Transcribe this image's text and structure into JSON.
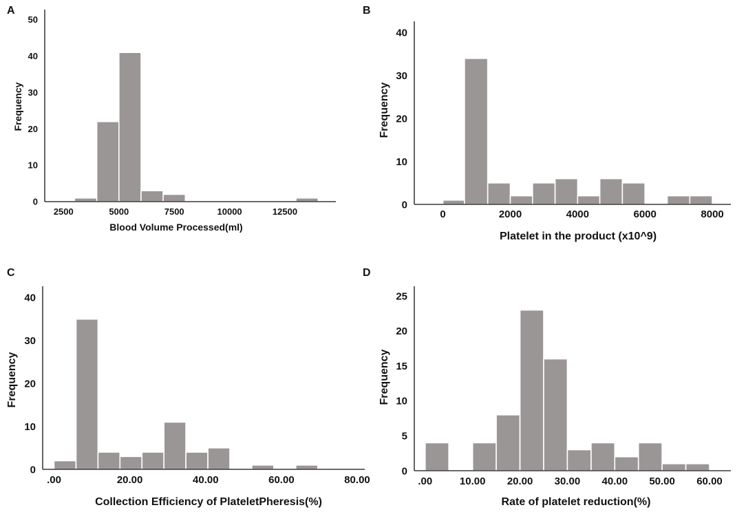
{
  "figure": {
    "bar_color": "#9b9696",
    "axis_color": "#111111"
  },
  "chart_data": [
    {
      "panel": "A",
      "type": "bar",
      "xlabel": "Blood Volume Processed(ml)",
      "ylabel": "Frequency",
      "xlim": [
        1650,
        14800
      ],
      "ylim": [
        0,
        52
      ],
      "xticks": [
        {
          "v": 2500,
          "label": "2500"
        },
        {
          "v": 5000,
          "label": "5000"
        },
        {
          "v": 7500,
          "label": "7500"
        },
        {
          "v": 10000,
          "label": "10000"
        },
        {
          "v": 12500,
          "label": "12500"
        }
      ],
      "yticks": [
        {
          "v": 0,
          "label": "0"
        },
        {
          "v": 10,
          "label": "10"
        },
        {
          "v": 20,
          "label": "20"
        },
        {
          "v": 30,
          "label": "30"
        },
        {
          "v": 40,
          "label": "40"
        },
        {
          "v": 50,
          "label": "50"
        }
      ],
      "bins": [
        {
          "x0": 3000,
          "x1": 4000,
          "count": 1
        },
        {
          "x0": 4000,
          "x1": 5000,
          "count": 22
        },
        {
          "x0": 5000,
          "x1": 6000,
          "count": 41
        },
        {
          "x0": 6000,
          "x1": 7000,
          "count": 3
        },
        {
          "x0": 7000,
          "x1": 8000,
          "count": 2
        },
        {
          "x0": 13000,
          "x1": 14000,
          "count": 1
        }
      ]
    },
    {
      "panel": "B",
      "type": "bar",
      "xlabel": "Platelet in the product (x10^9)",
      "ylabel": "Frequency",
      "xlim": [
        -850,
        8550
      ],
      "ylim": [
        0,
        42
      ],
      "xticks": [
        {
          "v": 0,
          "label": "0"
        },
        {
          "v": 2000,
          "label": "2000"
        },
        {
          "v": 4000,
          "label": "4000"
        },
        {
          "v": 6000,
          "label": "6000"
        },
        {
          "v": 8000,
          "label": "8000"
        }
      ],
      "yticks": [
        {
          "v": 0,
          "label": "0"
        },
        {
          "v": 10,
          "label": "10"
        },
        {
          "v": 20,
          "label": "20"
        },
        {
          "v": 30,
          "label": "30"
        },
        {
          "v": 40,
          "label": "40"
        }
      ],
      "bins": [
        {
          "x0": 0,
          "x1": 640,
          "count": 1
        },
        {
          "x0": 640,
          "x1": 1330,
          "count": 34
        },
        {
          "x0": 1330,
          "x1": 2000,
          "count": 5
        },
        {
          "x0": 2000,
          "x1": 2660,
          "count": 2
        },
        {
          "x0": 2660,
          "x1": 3330,
          "count": 5
        },
        {
          "x0": 3330,
          "x1": 4000,
          "count": 6
        },
        {
          "x0": 4000,
          "x1": 4660,
          "count": 2
        },
        {
          "x0": 4660,
          "x1": 5330,
          "count": 6
        },
        {
          "x0": 5330,
          "x1": 6000,
          "count": 5
        },
        {
          "x0": 6660,
          "x1": 7330,
          "count": 2
        },
        {
          "x0": 7330,
          "x1": 8000,
          "count": 2
        }
      ]
    },
    {
      "panel": "C",
      "type": "bar",
      "xlabel": "Collection Efficiency of PlateletPheresis(%)",
      "ylabel": "Frequency",
      "xlim": [
        -3,
        82
      ],
      "ylim": [
        0,
        42
      ],
      "xticks": [
        {
          "v": 0,
          "label": ".00"
        },
        {
          "v": 20,
          "label": "20.00"
        },
        {
          "v": 40,
          "label": "40.00"
        },
        {
          "v": 60,
          "label": "60.00"
        },
        {
          "v": 80,
          "label": "80.00"
        }
      ],
      "yticks": [
        {
          "v": 0,
          "label": "0"
        },
        {
          "v": 10,
          "label": "10"
        },
        {
          "v": 20,
          "label": "20"
        },
        {
          "v": 30,
          "label": "30"
        },
        {
          "v": 40,
          "label": "40"
        }
      ],
      "bins": [
        {
          "x0": 0,
          "x1": 5.8,
          "count": 2
        },
        {
          "x0": 5.8,
          "x1": 11.6,
          "count": 35
        },
        {
          "x0": 11.6,
          "x1": 17.4,
          "count": 4
        },
        {
          "x0": 17.4,
          "x1": 23.2,
          "count": 3
        },
        {
          "x0": 23.2,
          "x1": 29,
          "count": 4
        },
        {
          "x0": 29,
          "x1": 34.8,
          "count": 11
        },
        {
          "x0": 34.8,
          "x1": 40.6,
          "count": 4
        },
        {
          "x0": 40.6,
          "x1": 46.4,
          "count": 5
        },
        {
          "x0": 52.2,
          "x1": 58,
          "count": 1
        },
        {
          "x0": 63.8,
          "x1": 69.6,
          "count": 1
        }
      ]
    },
    {
      "panel": "D",
      "type": "bar",
      "xlabel": "Rate of platelet reduction(%)",
      "ylabel": "Frequency",
      "xlim": [
        -2.3,
        64.5
      ],
      "ylim": [
        0,
        26
      ],
      "xticks": [
        {
          "v": 0,
          "label": ".00"
        },
        {
          "v": 10,
          "label": "10.00"
        },
        {
          "v": 20,
          "label": "20.00"
        },
        {
          "v": 30,
          "label": "30.00"
        },
        {
          "v": 40,
          "label": "40.00"
        },
        {
          "v": 50,
          "label": "50.00"
        },
        {
          "v": 60,
          "label": "60.00"
        }
      ],
      "yticks": [
        {
          "v": 0,
          "label": "0"
        },
        {
          "v": 5,
          "label": "5"
        },
        {
          "v": 10,
          "label": "10"
        },
        {
          "v": 15,
          "label": "15"
        },
        {
          "v": 20,
          "label": "20"
        },
        {
          "v": 25,
          "label": "25"
        }
      ],
      "bins": [
        {
          "x0": 0,
          "x1": 5,
          "count": 4
        },
        {
          "x0": 5,
          "x1": 10,
          "count": 0
        },
        {
          "x0": 10,
          "x1": 15,
          "count": 4
        },
        {
          "x0": 15,
          "x1": 20,
          "count": 8
        },
        {
          "x0": 20,
          "x1": 25,
          "count": 23
        },
        {
          "x0": 25,
          "x1": 30,
          "count": 16
        },
        {
          "x0": 30,
          "x1": 35,
          "count": 3
        },
        {
          "x0": 35,
          "x1": 40,
          "count": 4
        },
        {
          "x0": 40,
          "x1": 45,
          "count": 2
        },
        {
          "x0": 45,
          "x1": 50,
          "count": 4
        },
        {
          "x0": 50,
          "x1": 55,
          "count": 1
        },
        {
          "x0": 55,
          "x1": 60,
          "count": 1
        }
      ]
    }
  ]
}
